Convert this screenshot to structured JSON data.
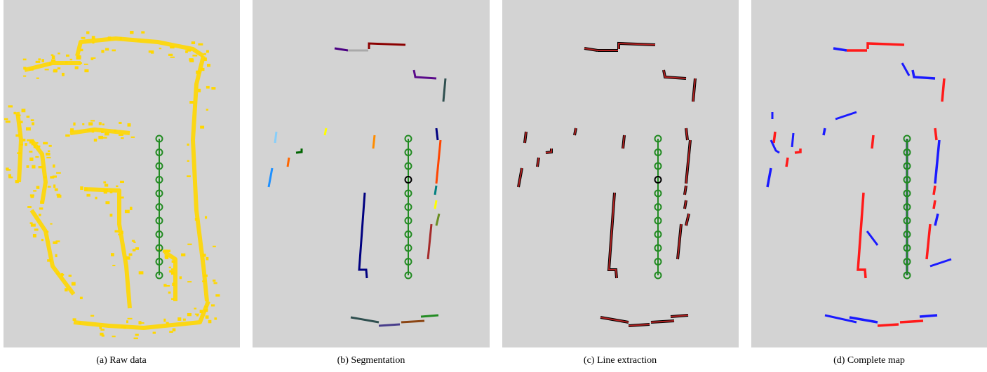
{
  "panels": [
    {
      "caption": "(a) Raw data"
    },
    {
      "caption": "(b) Segmentation"
    },
    {
      "caption": "(c) Line extraction"
    },
    {
      "caption": "(d) Complete map"
    }
  ]
}
